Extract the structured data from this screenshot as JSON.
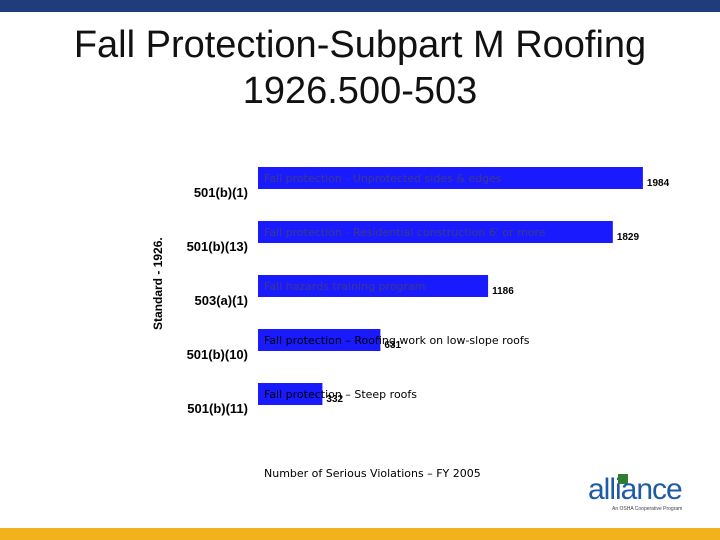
{
  "title": {
    "line1": "Fall Protection-Subpart M Roofing",
    "line2": "1926.500-503"
  },
  "chart_data": {
    "type": "bar",
    "orientation": "horizontal",
    "ylabel": "Standard - 1926.",
    "xlabel": "Number of Serious Violations – FY 2005",
    "categories": [
      "501(b)(1)",
      "501(b)(13)",
      "503(a)(1)",
      "501(b)(10)",
      "501(b)(11)"
    ],
    "descriptions": [
      "Fall protection - Unprotected sides & edges",
      "Fall protection - Residential construction 6' or more",
      "Fall hazards training program",
      "Fall protection – Roofing work on low-slope roofs",
      "Fall protection – Steep roofs"
    ],
    "values": [
      1984,
      1829,
      1186,
      631,
      332
    ],
    "xlim": [
      0,
      2000
    ],
    "bar_color": "#1a1aff",
    "grid": false,
    "legend": "none"
  },
  "logo": {
    "text": "alliance",
    "subtext": "An OSHA Cooperative Program"
  },
  "colors": {
    "top_bar": "#1f3d7a",
    "bottom_bar": "#f2b21b",
    "logo": "#1f5aa8"
  }
}
